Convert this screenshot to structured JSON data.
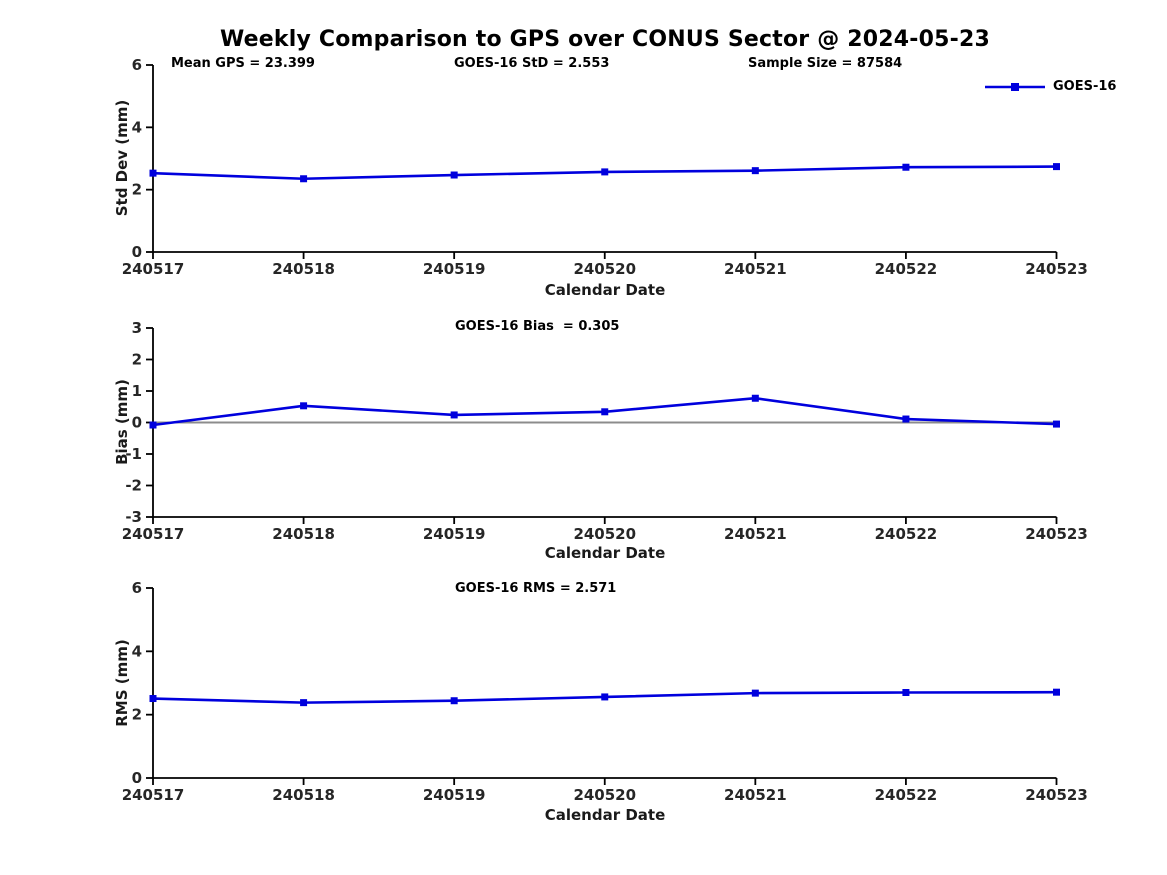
{
  "figure": {
    "title": "Weekly Comparison to GPS over CONUS Sector @ 2024-05-23",
    "legend": {
      "label": "GOES-16"
    },
    "colors": {
      "line": "#0000dd",
      "axis": "#000000",
      "tick_label": "#262626",
      "zero_line": "#8c8c8c",
      "background": "#ffffff"
    }
  },
  "chart_data": [
    {
      "type": "line",
      "title": "",
      "ylabel": "Std Dev (mm)",
      "xlabel": "Calendar Date",
      "categories": [
        "240517",
        "240518",
        "240519",
        "240520",
        "240521",
        "240522",
        "240523"
      ],
      "series": [
        {
          "name": "GOES-16",
          "values": [
            2.53,
            2.35,
            2.47,
            2.57,
            2.61,
            2.72,
            2.74
          ]
        }
      ],
      "ylim": [
        0,
        6
      ],
      "yticks": [
        0,
        2,
        4,
        6
      ],
      "annotations": [
        "Mean GPS = 23.399",
        "GOES-16 StD = 2.553",
        "Sample Size = 87584"
      ],
      "legend_position": "top-right",
      "grid": false,
      "marker": "square"
    },
    {
      "type": "line",
      "title": "",
      "ylabel": "Bias (mm)",
      "xlabel": "Calendar Date",
      "categories": [
        "240517",
        "240518",
        "240519",
        "240520",
        "240521",
        "240522",
        "240523"
      ],
      "series": [
        {
          "name": "GOES-16",
          "values": [
            -0.08,
            0.53,
            0.24,
            0.34,
            0.77,
            0.11,
            -0.05
          ]
        }
      ],
      "ylim": [
        -3,
        3
      ],
      "yticks": [
        -3,
        -2,
        -1,
        0,
        1,
        2,
        3
      ],
      "annotations": [
        "GOES-16 Bias  = 0.305"
      ],
      "zero_line": true,
      "grid": false,
      "marker": "square"
    },
    {
      "type": "line",
      "title": "",
      "ylabel": "RMS (mm)",
      "xlabel": "Calendar Date",
      "categories": [
        "240517",
        "240518",
        "240519",
        "240520",
        "240521",
        "240522",
        "240523"
      ],
      "series": [
        {
          "name": "GOES-16",
          "values": [
            2.51,
            2.38,
            2.44,
            2.56,
            2.68,
            2.7,
            2.71
          ]
        }
      ],
      "ylim": [
        0,
        6
      ],
      "yticks": [
        0,
        2,
        4,
        6
      ],
      "annotations": [
        "GOES-16 RMS = 2.571"
      ],
      "grid": false,
      "marker": "square"
    }
  ]
}
